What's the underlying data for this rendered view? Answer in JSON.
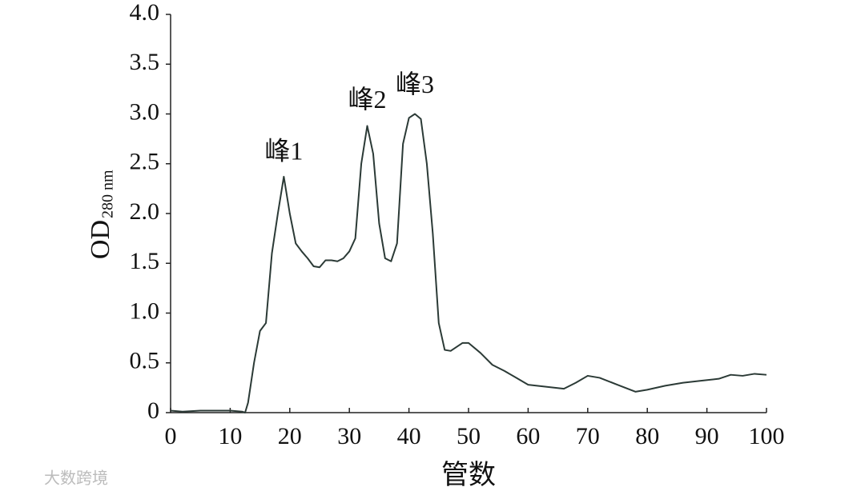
{
  "chart_data": {
    "type": "line",
    "xlabel": "管数",
    "ylabel": "OD",
    "ylabel_sub": "280 nm",
    "watermark": "大数跨境",
    "annotations": [
      {
        "text": "峰1",
        "x": 19,
        "y": 2.6
      },
      {
        "text": "峰2",
        "x": 33,
        "y": 3.12
      },
      {
        "text": "峰3",
        "x": 41,
        "y": 3.27
      }
    ],
    "x": [
      0,
      2,
      5,
      8,
      10,
      12,
      12.5,
      13,
      14,
      15,
      16,
      17,
      18,
      19,
      20,
      21,
      22,
      23,
      24,
      25,
      26,
      27,
      28,
      29,
      30,
      31,
      32,
      33,
      34,
      35,
      36,
      37,
      38,
      39,
      40,
      41,
      42,
      43,
      44,
      45,
      46,
      47,
      48,
      49,
      50,
      52,
      54,
      56,
      58,
      60,
      63,
      66,
      68,
      70,
      72,
      75,
      78,
      80,
      83,
      86,
      89,
      92,
      94,
      96,
      98,
      100
    ],
    "series": [
      {
        "color": "#2b3a36",
        "values": [
          0.02,
          0.01,
          0.02,
          0.02,
          0.02,
          0.01,
          0.0,
          0.1,
          0.5,
          0.82,
          0.9,
          1.6,
          2.0,
          2.37,
          2.0,
          1.7,
          1.62,
          1.55,
          1.47,
          1.46,
          1.53,
          1.53,
          1.52,
          1.55,
          1.62,
          1.75,
          2.5,
          2.88,
          2.6,
          1.9,
          1.55,
          1.52,
          1.7,
          2.7,
          2.96,
          3.0,
          2.95,
          2.5,
          1.8,
          0.9,
          0.63,
          0.62,
          0.66,
          0.7,
          0.7,
          0.6,
          0.48,
          0.42,
          0.35,
          0.28,
          0.26,
          0.24,
          0.3,
          0.37,
          0.35,
          0.28,
          0.21,
          0.23,
          0.27,
          0.3,
          0.32,
          0.34,
          0.38,
          0.37,
          0.39,
          0.38
        ]
      }
    ],
    "xlim": [
      0,
      100
    ],
    "xticks": [
      0,
      10,
      20,
      30,
      40,
      50,
      60,
      70,
      80,
      90,
      100
    ],
    "ylim": [
      0,
      4
    ],
    "yticks": [
      0,
      0.5,
      {
        "value": 1,
        "label": "1.0"
      },
      1.5,
      {
        "value": 2,
        "label": "2.0"
      },
      2.5,
      {
        "value": 3,
        "label": "3.0"
      },
      3.5,
      {
        "value": 4,
        "label": "4.0"
      }
    ],
    "grid": false
  }
}
